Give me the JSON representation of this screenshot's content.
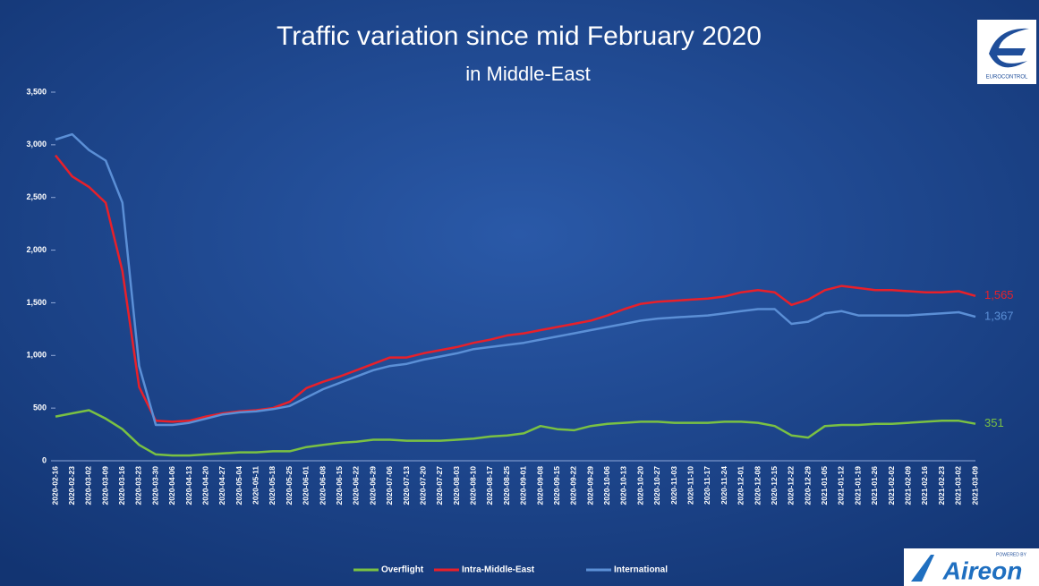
{
  "chart_data": {
    "type": "line",
    "title": "Traffic variation since mid February 2020",
    "subtitle": "in Middle-East",
    "categories": [
      "2020-02-16",
      "2020-02-23",
      "2020-03-02",
      "2020-03-09",
      "2020-03-16",
      "2020-03-23",
      "2020-03-30",
      "2020-04-06",
      "2020-04-13",
      "2020-04-20",
      "2020-04-27",
      "2020-05-04",
      "2020-05-11",
      "2020-05-18",
      "2020-05-25",
      "2020-06-01",
      "2020-06-08",
      "2020-06-15",
      "2020-06-22",
      "2020-06-29",
      "2020-07-06",
      "2020-07-13",
      "2020-07-20",
      "2020-07-27",
      "2020-08-03",
      "2020-08-10",
      "2020-08-17",
      "2020-08-25",
      "2020-09-01",
      "2020-09-08",
      "2020-09-15",
      "2020-09-22",
      "2020-09-29",
      "2020-10-06",
      "2020-10-13",
      "2020-10-20",
      "2020-10-27",
      "2020-11-03",
      "2020-11-10",
      "2020-11-17",
      "2020-11-24",
      "2020-12-01",
      "2020-12-08",
      "2020-12-15",
      "2020-12-22",
      "2020-12-29",
      "2021-01-05",
      "2021-01-12",
      "2021-01-19",
      "2021-01-26",
      "2021-02-02",
      "2021-02-09",
      "2021-02-16",
      "2021-02-23",
      "2021-03-02",
      "2021-03-09"
    ],
    "series": [
      {
        "name": "Overflight",
        "color": "#7ac143",
        "end_label": "351",
        "values": [
          420,
          450,
          480,
          400,
          300,
          150,
          60,
          50,
          50,
          60,
          70,
          80,
          80,
          90,
          90,
          130,
          150,
          170,
          180,
          200,
          200,
          190,
          190,
          190,
          200,
          210,
          230,
          240,
          260,
          330,
          300,
          290,
          330,
          350,
          360,
          370,
          370,
          360,
          360,
          360,
          370,
          370,
          360,
          330,
          240,
          220,
          330,
          340,
          340,
          350,
          350,
          360,
          370,
          380,
          380,
          351
        ]
      },
      {
        "name": "Intra-Middle-East",
        "color": "#e8202a",
        "end_label": "1,565",
        "values": [
          2900,
          2700,
          2600,
          2450,
          1800,
          700,
          380,
          370,
          380,
          420,
          450,
          470,
          480,
          500,
          560,
          690,
          750,
          800,
          860,
          920,
          980,
          980,
          1020,
          1050,
          1080,
          1120,
          1150,
          1190,
          1210,
          1240,
          1270,
          1300,
          1330,
          1380,
          1440,
          1490,
          1510,
          1520,
          1530,
          1540,
          1560,
          1600,
          1620,
          1600,
          1480,
          1530,
          1620,
          1660,
          1640,
          1620,
          1620,
          1610,
          1600,
          1600,
          1610,
          1565
        ]
      },
      {
        "name": "International",
        "color": "#5b8fd6",
        "end_label": "1,367",
        "values": [
          3050,
          3100,
          2950,
          2850,
          2450,
          900,
          340,
          340,
          360,
          400,
          440,
          460,
          470,
          490,
          520,
          600,
          680,
          740,
          800,
          860,
          900,
          920,
          960,
          990,
          1020,
          1060,
          1080,
          1100,
          1120,
          1150,
          1180,
          1210,
          1240,
          1270,
          1300,
          1330,
          1350,
          1360,
          1370,
          1380,
          1400,
          1420,
          1440,
          1440,
          1300,
          1320,
          1400,
          1420,
          1380,
          1380,
          1380,
          1380,
          1390,
          1400,
          1410,
          1367
        ]
      }
    ],
    "ylim": [
      0,
      3500
    ],
    "yticks": [
      0,
      500,
      {
        "value": 1000,
        "label": "1,000"
      },
      {
        "value": 1500,
        "label": "1,500"
      },
      {
        "value": 2000,
        "label": "2,000"
      },
      {
        "value": 2500,
        "label": "2,500"
      },
      {
        "value": 3000,
        "label": "3,000"
      },
      {
        "value": 3500,
        "label": "3,500"
      }
    ],
    "grid": false,
    "legend": "bottom"
  },
  "logos": {
    "top": "EUROCONTROL",
    "bottom_tag": "POWERED BY",
    "bottom": "Aireon"
  }
}
